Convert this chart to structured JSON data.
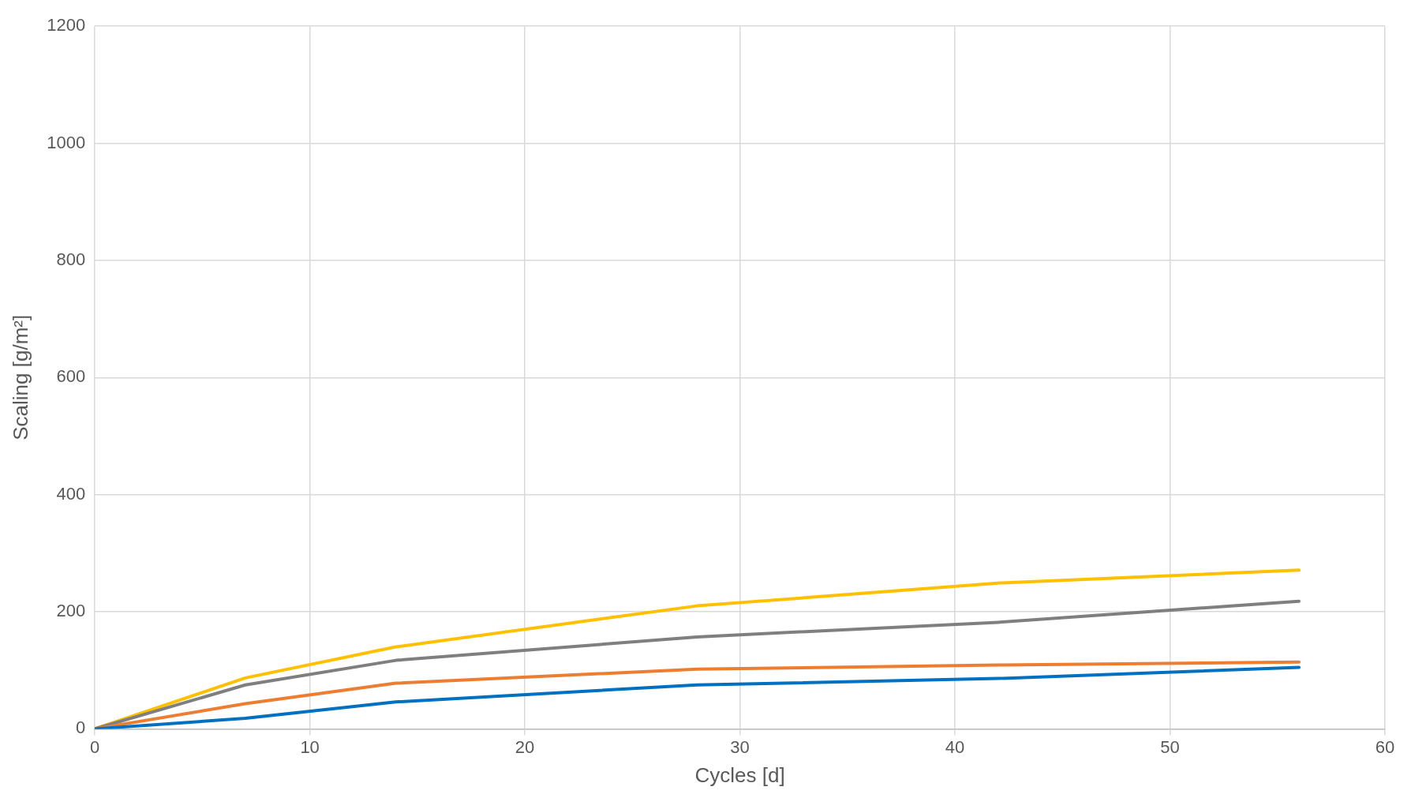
{
  "chart_data": {
    "type": "line",
    "xlabel": "Cycles [d]",
    "ylabel": "Scaling [g/m²]",
    "x": [
      0,
      7,
      14,
      28,
      42,
      56
    ],
    "series": [
      {
        "color": "#0070c0",
        "values": [
          0,
          18,
          46,
          75,
          86,
          105
        ]
      },
      {
        "color": "#ed7d31",
        "values": [
          0,
          43,
          78,
          102,
          109,
          114
        ]
      },
      {
        "color": "#7f7f7f",
        "values": [
          0,
          75,
          117,
          157,
          182,
          218
        ]
      },
      {
        "color": "#ffc000",
        "values": [
          0,
          87,
          140,
          210,
          249,
          271
        ]
      }
    ],
    "xlim": [
      0,
      60
    ],
    "xticks": [
      0,
      10,
      20,
      30,
      40,
      50,
      60
    ],
    "ylim": [
      0,
      1200
    ],
    "yticks": [
      0,
      200,
      400,
      600,
      800,
      1000,
      1200
    ],
    "grid": true,
    "legend": false,
    "marker": "none",
    "line_style": "solid"
  }
}
